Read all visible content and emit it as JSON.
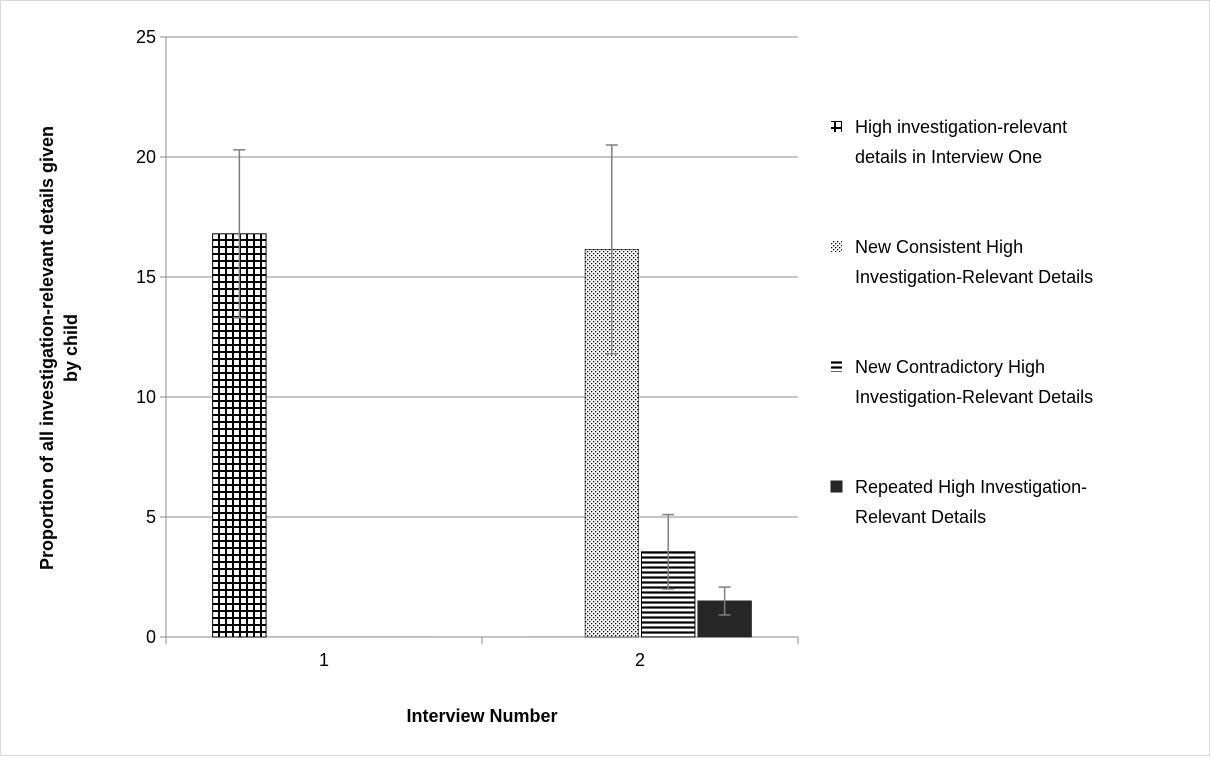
{
  "chart_data": {
    "type": "bar",
    "xlabel": "Interview Number",
    "ylabel": "Proportion of all investigation-relevant details given by child",
    "ylabel_lines": [
      "Proportion of all investigation-relevant details given",
      "by child"
    ],
    "categories": [
      "1",
      "2"
    ],
    "ylim": [
      0,
      25
    ],
    "yticks": [
      "0",
      "5",
      "10",
      "15",
      "20",
      "25"
    ],
    "grid": "horizontal",
    "legend_position": "right",
    "series": [
      {
        "name": "High investigation-relevant details in Interview One",
        "name_lines": [
          "High investigation-relevant",
          "details in Interview One"
        ],
        "pattern": "grid",
        "values": [
          16.8,
          0
        ],
        "error": [
          3.5,
          null
        ]
      },
      {
        "name": "New Consistent High Investigation-Relevant Details",
        "name_lines": [
          "New Consistent High",
          "Investigation-Relevant Details"
        ],
        "pattern": "dots",
        "values": [
          0,
          16.15
        ],
        "error": [
          null,
          4.35
        ]
      },
      {
        "name": "New Contradictory High Investigation-Relevant Details",
        "name_lines": [
          "New Contradictory High",
          "Investigation-Relevant Details"
        ],
        "pattern": "hlines",
        "values": [
          0,
          3.55
        ],
        "error": [
          null,
          1.55
        ]
      },
      {
        "name": "Repeated High Investigation-Relevant Details",
        "name_lines": [
          "Repeated High Investigation-",
          "Relevant Details"
        ],
        "pattern": "solid",
        "values": [
          0,
          1.5
        ],
        "error": [
          null,
          0.58
        ]
      }
    ]
  }
}
